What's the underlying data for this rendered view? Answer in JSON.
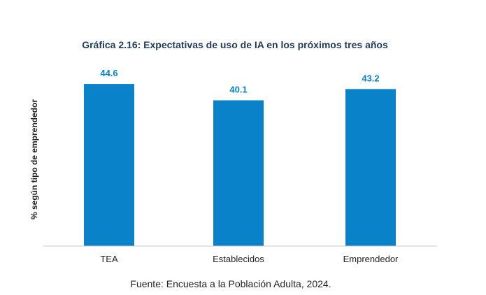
{
  "colors": {
    "bar": "#0a82c9",
    "title": "#1f3b5a",
    "data_label": "#0a82c9",
    "text": "#222222",
    "axis": "#c8c8c8"
  },
  "chart_data": {
    "type": "bar",
    "title": "Gráfica 2.16: Expectativas de uso de IA en los próximos tres años",
    "xlabel": "",
    "ylabel": "% según tipo de emprendedor",
    "categories": [
      "TEA",
      "Establecidos",
      "Emprendedor"
    ],
    "values": [
      44.6,
      40.1,
      43.2
    ],
    "value_labels": [
      "44.6",
      "40.1",
      "43.2"
    ],
    "ylim": [
      0,
      50
    ],
    "grid": false,
    "legend": "none"
  },
  "source": "Fuente: Encuesta a la Población Adulta, 2024."
}
